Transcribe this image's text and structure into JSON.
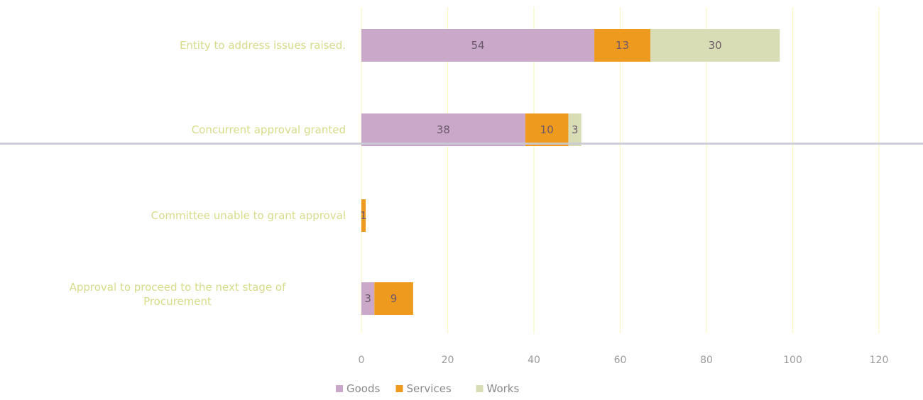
{
  "chart_data": {
    "type": "bar",
    "orientation": "horizontal",
    "stacked": true,
    "categories": [
      "Entity to address issues raised.",
      "Concurrent approval granted",
      "Committee unable to grant approval",
      "Approval to proceed to the next stage of Procurement"
    ],
    "category_lines": [
      [
        "Entity to address issues raised."
      ],
      [
        "Concurrent approval  granted"
      ],
      [
        "Committee unable to grant approval"
      ],
      [
        "Approval to proceed to the next stage of",
        "Procurement"
      ]
    ],
    "series": [
      {
        "name": "Goods",
        "values": [
          54,
          38,
          0,
          3
        ],
        "color": "#c9a8c9"
      },
      {
        "name": "Services",
        "values": [
          13,
          10,
          1,
          9
        ],
        "color": "#ee9a1e"
      },
      {
        "name": "Works",
        "values": [
          30,
          3,
          0,
          0
        ],
        "color": "#d9ddb5"
      }
    ],
    "data_labels": [
      [
        "54",
        "13",
        "30"
      ],
      [
        "38",
        "10",
        "3"
      ],
      [
        "",
        "1",
        ""
      ],
      [
        "3",
        "9",
        ""
      ]
    ],
    "xticks": [
      "0",
      "20",
      "40",
      "60",
      "80",
      "100",
      "120"
    ],
    "xlim": [
      0,
      120
    ],
    "grid": true,
    "gridline_color": "#fbf7c6",
    "legend_position": "bottom",
    "title": "",
    "xlabel": "",
    "ylabel": ""
  }
}
